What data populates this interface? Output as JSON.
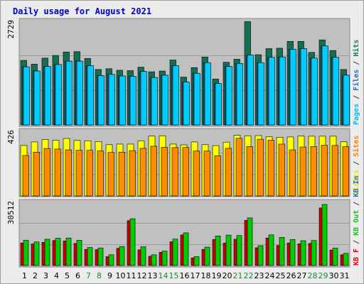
{
  "chart_data": {
    "type": "bar",
    "title": "Daily usage for August 2021",
    "days": [
      "1",
      "2",
      "3",
      "4",
      "5",
      "6",
      "7",
      "8",
      "9",
      "10",
      "11",
      "12",
      "13",
      "14",
      "15",
      "16",
      "17",
      "18",
      "19",
      "20",
      "21",
      "22",
      "23",
      "24",
      "25",
      "26",
      "27",
      "28",
      "29",
      "30",
      "31"
    ],
    "weekend_days": [
      "7",
      "8",
      "14",
      "15",
      "21",
      "22",
      "28",
      "29"
    ],
    "panels": [
      {
        "max_label": "2729",
        "ymax": 2729,
        "legend": [
          {
            "text": "Pages",
            "color": "#00bfff"
          },
          {
            "text": " / ",
            "color": "#3c3c3c"
          },
          {
            "text": "Files",
            "color": "#2e6fba"
          },
          {
            "text": " / ",
            "color": "#3c3c3c"
          },
          {
            "text": "Hits",
            "color": "#1c8064"
          }
        ],
        "series": [
          {
            "name": "Hits",
            "color": "#136e53",
            "values": [
              1700,
              1600,
              1760,
              1830,
              1920,
              1930,
              1750,
              1460,
              1480,
              1440,
              1430,
              1520,
              1400,
              1420,
              1710,
              1260,
              1510,
              1790,
              1210,
              1650,
              1730,
              2720,
              1850,
              2010,
              2020,
              2200,
              2200,
              1910,
              2240,
              1960,
              1460
            ]
          },
          {
            "name": "Files",
            "color": "#1e64aa",
            "values": [
              1530,
              1420,
              1540,
              1590,
              1680,
              1680,
              1560,
              1300,
              1330,
              1290,
              1280,
              1410,
              1250,
              1310,
              1560,
              1130,
              1360,
              1640,
              1090,
              1540,
              1620,
              1840,
              1640,
              1780,
              1790,
              1990,
              2010,
              1760,
              2080,
              1780,
              1310
            ]
          },
          {
            "name": "Pages",
            "color": "#00ccff",
            "values": [
              1530,
              1420,
              1540,
              1590,
              1680,
              1680,
              1560,
              1300,
              1330,
              1290,
              1280,
              1410,
              1250,
              1310,
              1560,
              1130,
              1360,
              1640,
              1090,
              1540,
              1620,
              1840,
              1640,
              1780,
              1790,
              1990,
              2010,
              1760,
              2080,
              1780,
              1310
            ]
          }
        ]
      },
      {
        "max_label": "426",
        "ymax": 426,
        "legend": [
          {
            "text": "Visits",
            "color": "#e8e800"
          },
          {
            "text": " / ",
            "color": "#3c3c3c"
          },
          {
            "text": "Sites",
            "color": "#ff8000"
          }
        ],
        "series": [
          {
            "name": "Visits",
            "color": "#ffff00",
            "values": [
              333,
              356,
              373,
              368,
              379,
              366,
              364,
              359,
              338,
              342,
              342,
              364,
              395,
              397,
              342,
              337,
              356,
              338,
              332,
              355,
              400,
              397,
              398,
              391,
              387,
              389,
              395,
              394,
              394,
              394,
              357
            ]
          },
          {
            "name": "Sites",
            "color": "#ff8c00",
            "values": [
              267,
              289,
              313,
              309,
              304,
              301,
              301,
              297,
              287,
              289,
              299,
              314,
              328,
              321,
              319,
              320,
              296,
              296,
              265,
              314,
              380,
              326,
              374,
              367,
              342,
              304,
              323,
              326,
              334,
              333,
              325
            ]
          }
        ]
      },
      {
        "max_label": "30512",
        "ymax": 30512,
        "legend": [
          {
            "text": "KB F",
            "color": "#e60000"
          },
          {
            "text": " / ",
            "color": "#3c3c3c"
          },
          {
            "text": "KB Out",
            "color": "#1fbf1f"
          },
          {
            "text": " / ",
            "color": "#3c3c3c"
          },
          {
            "text": "KB In",
            "color": "#2e6fba"
          }
        ],
        "series": [
          {
            "name": "KB F",
            "color": "#cc0000",
            "values": [
              10900,
              10400,
              11200,
              12100,
              11900,
              10700,
              7800,
              7700,
              4300,
              8300,
              21700,
              7600,
              4500,
              6400,
              11500,
              14800,
              3700,
              7800,
              12600,
              10900,
              12700,
              21800,
              8600,
              13300,
              9700,
              10900,
              10500,
              10700,
              27800,
              7500,
              5200
            ]
          },
          {
            "name": "KB Out",
            "color": "#00cc00",
            "values": [
              12200,
              11400,
              12700,
              13200,
              13300,
              12200,
              8700,
              8500,
              5200,
              9200,
              22600,
              9100,
              5200,
              7000,
              12800,
              15800,
              4300,
              8900,
              14300,
              14700,
              14500,
              23000,
              9600,
              14800,
              13600,
              12600,
              12000,
              12100,
              29500,
              8400,
              5900
            ]
          }
        ]
      }
    ]
  }
}
